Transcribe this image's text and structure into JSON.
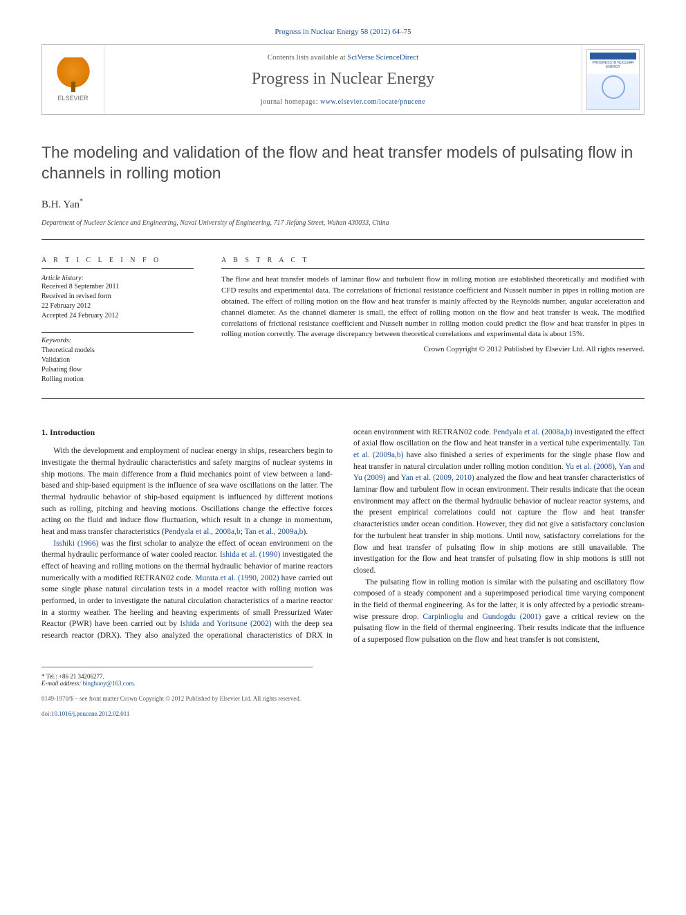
{
  "citation": {
    "journal_link_text": "Progress in Nuclear Energy 58 (2012) 64–75",
    "link_color": "#1a4d8f"
  },
  "header": {
    "contents_prefix": "Contents lists available at ",
    "contents_link": "SciVerse ScienceDirect",
    "journal_title": "Progress in Nuclear Energy",
    "homepage_prefix": "journal homepage: ",
    "homepage_url": "www.elsevier.com/locate/pnucene",
    "publisher_logo_label": "ELSEVIER",
    "cover_caption": "PROGRESS IN NUCLEAR ENERGY"
  },
  "article": {
    "title": "The modeling and validation of the flow and heat transfer models of pulsating flow in channels in rolling motion",
    "author": "B.H. Yan",
    "author_marker": "*",
    "affiliation": "Department of Nuclear Science and Engineering, Naval University of Engineering, 717 Jiefang Street, Wuhan 430033, China"
  },
  "info": {
    "article_info_label": "A R T I C L E   I N F O",
    "history_label": "Article history:",
    "history": [
      "Received 8 September 2011",
      "Received in revised form",
      "22 February 2012",
      "Accepted 24 February 2012"
    ],
    "keywords_label": "Keywords:",
    "keywords": [
      "Theoretical models",
      "Validation",
      "Pulsating flow",
      "Rolling motion"
    ]
  },
  "abstract": {
    "label": "A B S T R A C T",
    "text": "The flow and heat transfer models of laminar flow and turbulent flow in rolling motion are established theoretically and modified with CFD results and experimental data. The correlations of frictional resistance coefficient and Nusselt number in pipes in rolling motion are obtained. The effect of rolling motion on the flow and heat transfer is mainly affected by the Reynolds number, angular acceleration and channel diameter. As the channel diameter is small, the effect of rolling motion on the flow and heat transfer is weak. The modified correlations of frictional resistance coefficient and Nusselt number in rolling motion could predict the flow and heat transfer in pipes in rolling motion correctly. The average discrepancy between theoretical correlations and experimental data is about 15%.",
    "copyright": "Crown Copyright © 2012 Published by Elsevier Ltd. All rights reserved."
  },
  "body": {
    "heading": "1. Introduction",
    "p1_pre": "With the development and employment of nuclear energy in ships, researchers begin to investigate the thermal hydraulic characteristics and safety margins of nuclear systems in ship motions. The main difference from a fluid mechanics point of view between a land-based and ship-based equipment is the influence of sea wave oscillations on the latter. The thermal hydraulic behavior of ship-based equipment is influenced by different motions such as rolling, pitching and heaving motions. Oscillations change the effective forces acting on the fluid and induce flow fluctuation, which result in a change in momentum, heat and mass transfer characteristics (",
    "p1_ref1": "Pendyala et al., 2008a,b",
    "p1_mid1": "; ",
    "p1_ref2": "Tan et al., 2009a,b",
    "p1_post": ").",
    "p2_ref1": "Isshiki (1966)",
    "p2_a": " was the first scholar to analyze the effect of ocean environment on the thermal hydraulic performance of water cooled reactor. ",
    "p2_ref2": "Ishida et al. (1990)",
    "p2_b": " investigated the effect of heaving and rolling motions on the thermal hydraulic behavior of marine reactors numerically with a modified RETRAN02 code. ",
    "p2_ref3": "Murata et al. (1990, 2002)",
    "p2_c": " have carried out some single phase natural circulation tests in a model reactor with rolling motion was performed, in order to investigate the natural circulation characteristics of a marine reactor in a stormy weather. The heeling and heaving experiments of small Pressurized Water Reactor (PWR) have been ",
    "p2_d": "carried out by ",
    "p2_ref4": "Ishida and Yoritsune (2002)",
    "p2_e": " with the deep sea research reactor (DRX). They also analyzed the operational characteristics of DRX in ocean environment with RETRAN02 code. ",
    "p2_ref5": "Pendyala et al. (2008a,b)",
    "p2_f": " investigated the effect of axial flow oscillation on the flow and heat transfer in a vertical tube experimentally. ",
    "p2_ref6": "Tan et al. (2009a,b)",
    "p2_g": " have also finished a series of experiments for the single phase flow and heat transfer in natural circulation under rolling motion condition. ",
    "p2_ref7": "Yu et al. (2008)",
    "p2_h": ", ",
    "p2_ref8": "Yan and Yu (2009)",
    "p2_i": " and ",
    "p2_ref9": "Yan et al. (2009, 2010)",
    "p2_j": " analyzed the flow and heat transfer characteristics of laminar flow and turbulent flow in ocean environment. Their results indicate that the ocean environment may affect on the thermal hydraulic behavior of nuclear reactor systems, and the present empirical correlations could not capture the flow and heat transfer characteristics under ocean condition. However, they did not give a satisfactory conclusion for the turbulent heat transfer in ship motions. Until now, satisfactory correlations for the flow and heat transfer of pulsating flow in ship motions are still unavailable. The investigation for the flow and heat transfer of pulsating flow in ship motions is still not closed.",
    "p3_a": "The pulsating flow in rolling motion is similar with the pulsating and oscillatory flow composed of a steady component and a superimposed periodical time varying component in the field of thermal engineering. As for the latter, it is only affected by a periodic stream-wise pressure drop. ",
    "p3_ref1": "Carpinlioglu and Gundogdu (2001)",
    "p3_b": " gave a critical review on the pulsating flow in the field of thermal engineering. Their results indicate that the influence of a superposed flow pulsation on the flow and heat transfer is not consistent,"
  },
  "corr": {
    "tel_label": "* Tel.: ",
    "tel": "+86 21 34206277.",
    "email_label": "E-mail address: ",
    "email": "binghuoy@163.com",
    "email_suffix": "."
  },
  "footer": {
    "issn_line": "0149-1970/$ – see front matter Crown Copyright © 2012 Published by Elsevier Ltd. All rights reserved.",
    "doi_prefix": "doi:",
    "doi": "10.1016/j.pnucene.2012.02.011"
  },
  "colors": {
    "link": "#1a4d8f",
    "text": "#222222",
    "rule": "#333333",
    "elsevier_orange": "#e8941f"
  }
}
